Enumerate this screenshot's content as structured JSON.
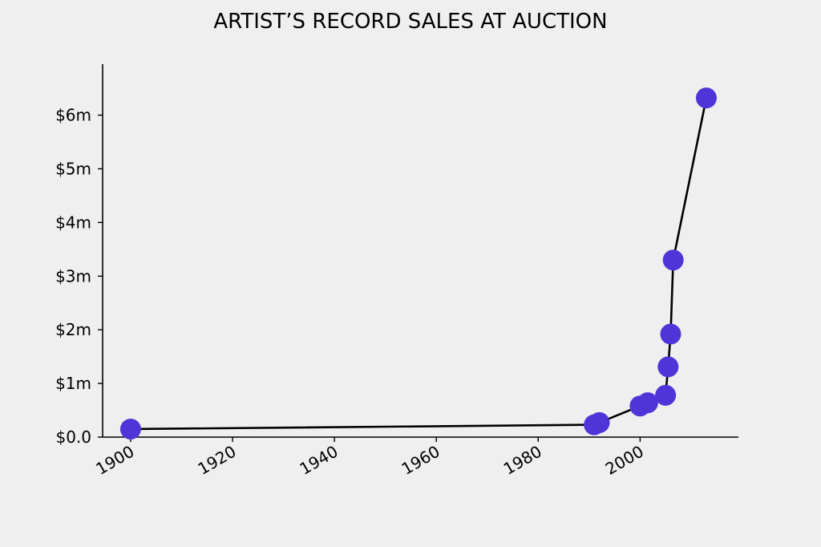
{
  "chart_data": {
    "type": "line",
    "title": "ARTIST’S RECORD SALES AT AUCTION",
    "xlabel": "",
    "ylabel": "",
    "x_ticks": [
      1900,
      1920,
      1940,
      1960,
      1980,
      2000
    ],
    "x_tick_labels": [
      "1900",
      "1920",
      "1940",
      "1960",
      "1980",
      "2000"
    ],
    "y_ticks": [
      0,
      1,
      2,
      3,
      4,
      5,
      6
    ],
    "y_tick_labels": [
      "$0.0",
      "$1m",
      "$2m",
      "$3m",
      "$4m",
      "$5m",
      "$6m"
    ],
    "xlim": [
      1894.5,
      2019.3
    ],
    "ylim": [
      0,
      6.95
    ],
    "y_unit": "$m",
    "grid": false,
    "legend": "none",
    "marker_color": "#4f35d8",
    "line_color": "#000000",
    "series": [
      {
        "x": [
          1900,
          1991,
          1992,
          2000,
          2001.5,
          2005,
          2005.5,
          2006,
          2006.5,
          2013
        ],
        "y": [
          0.15,
          0.23,
          0.27,
          0.58,
          0.64,
          0.78,
          1.31,
          1.92,
          3.3,
          6.32
        ]
      }
    ]
  }
}
